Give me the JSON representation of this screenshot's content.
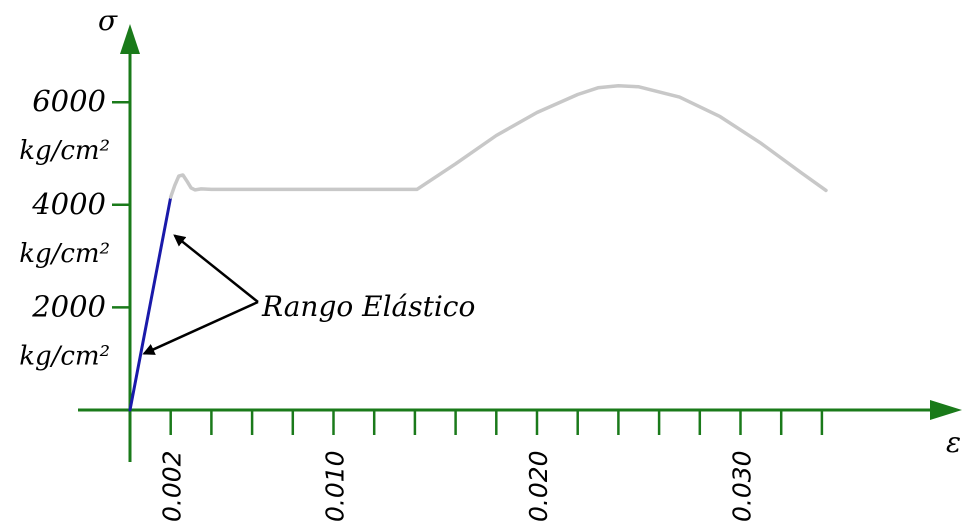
{
  "chart_data": {
    "type": "line",
    "title": "",
    "xlabel": "ε",
    "ylabel": "σ",
    "xlim": [
      0,
      0.0342
    ],
    "ylim": [
      0,
      6400
    ],
    "grid": false,
    "y_ticks": [
      {
        "value": 2000,
        "label": "2000",
        "unit": "kg/cm²"
      },
      {
        "value": 4000,
        "label": "4000",
        "unit": "kg/cm²"
      },
      {
        "value": 6000,
        "label": "6000",
        "unit": "kg/cm²"
      }
    ],
    "x_tick_step": 0.002,
    "x_tick_labels": [
      {
        "value": 0.002,
        "label": "0.002"
      },
      {
        "value": 0.01,
        "label": "0.010"
      },
      {
        "value": 0.02,
        "label": "0.020"
      },
      {
        "value": 0.03,
        "label": "0.030"
      }
    ],
    "series": [
      {
        "segment": "elastic",
        "color": "#1a1aaa",
        "x": [
          0,
          0.002
        ],
        "y": [
          0,
          4150
        ]
      },
      {
        "segment": "plastic",
        "color": "#c8c8c8",
        "x": [
          0.002,
          0.0022,
          0.0024,
          0.0026,
          0.0028,
          0.003,
          0.0032,
          0.0035,
          0.004,
          0.008,
          0.012,
          0.0141,
          0.016,
          0.018,
          0.02,
          0.022,
          0.023,
          0.024,
          0.025,
          0.027,
          0.029,
          0.031,
          0.033,
          0.0342
        ],
        "y": [
          4150,
          4380,
          4560,
          4580,
          4460,
          4330,
          4290,
          4310,
          4300,
          4300,
          4300,
          4300,
          4800,
          5350,
          5800,
          6150,
          6280,
          6320,
          6300,
          6100,
          5720,
          5200,
          4620,
          4280
        ]
      }
    ],
    "annotations": [
      {
        "text": "Rango Elástico",
        "arrow_targets": [
          {
            "x": 0.0022,
            "y": 3400
          },
          {
            "x": 0.0007,
            "y": 1100
          }
        ]
      }
    ],
    "colors": {
      "axis": "#1a7a1a"
    }
  }
}
